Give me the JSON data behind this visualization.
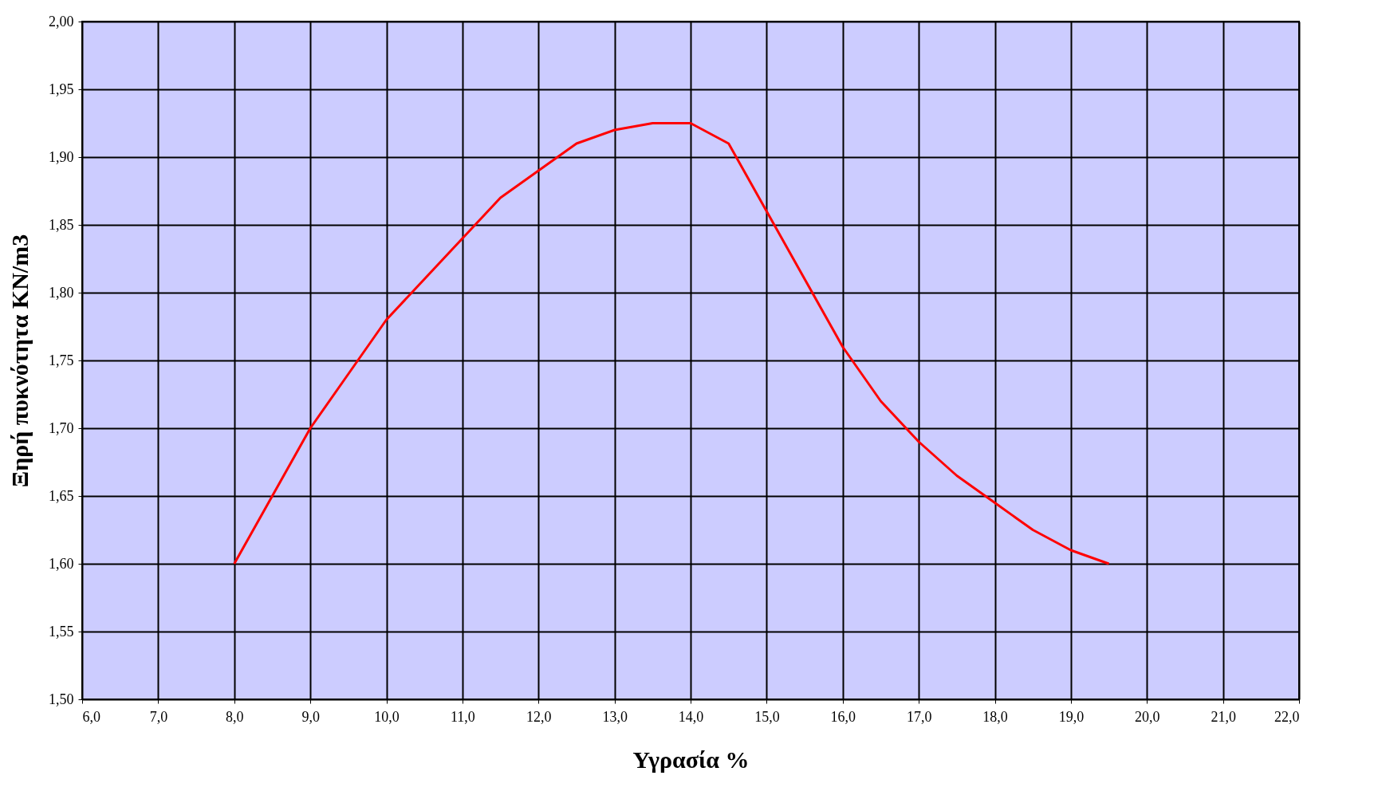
{
  "chart_data": {
    "type": "line",
    "xlabel": "Υγρασία %",
    "ylabel": "Ξηρή πυκνότητα KN/m3",
    "x": [
      8.0,
      8.5,
      9.0,
      9.5,
      10.0,
      10.5,
      11.0,
      11.5,
      12.0,
      12.5,
      13.0,
      13.5,
      14.0,
      14.5,
      15.0,
      15.5,
      16.0,
      16.5,
      17.0,
      17.5,
      18.0,
      18.5,
      19.0,
      19.5
    ],
    "series": [
      {
        "color": "#ff0000",
        "values": [
          1.6,
          1.65,
          1.7,
          1.74,
          1.78,
          1.81,
          1.84,
          1.87,
          1.89,
          1.91,
          1.92,
          1.925,
          1.925,
          1.91,
          1.86,
          1.81,
          1.76,
          1.72,
          1.69,
          1.665,
          1.645,
          1.625,
          1.61,
          1.6
        ]
      }
    ],
    "xlim": [
      6.0,
      22.0
    ],
    "xticks": [
      {
        "value": 6,
        "label": "6,0"
      },
      {
        "value": 7,
        "label": "7,0"
      },
      {
        "value": 8,
        "label": "8,0"
      },
      {
        "value": 9,
        "label": "9,0"
      },
      {
        "value": 10,
        "label": "10,0"
      },
      {
        "value": 11,
        "label": "11,0"
      },
      {
        "value": 12,
        "label": "12,0"
      },
      {
        "value": 13,
        "label": "13,0"
      },
      {
        "value": 14,
        "label": "14,0"
      },
      {
        "value": 15,
        "label": "15,0"
      },
      {
        "value": 16,
        "label": "16,0"
      },
      {
        "value": 17,
        "label": "17,0"
      },
      {
        "value": 18,
        "label": "18,0"
      },
      {
        "value": 19,
        "label": "19,0"
      },
      {
        "value": 20,
        "label": "20,0"
      },
      {
        "value": 21,
        "label": "21,0"
      },
      {
        "value": 22,
        "label": "22,0"
      }
    ],
    "ylim": [
      1.5,
      2.0
    ],
    "yticks": [
      {
        "value": 1.5,
        "label": "1,50"
      },
      {
        "value": 1.55,
        "label": "1,55"
      },
      {
        "value": 1.6,
        "label": "1,60"
      },
      {
        "value": 1.65,
        "label": "1,65"
      },
      {
        "value": 1.7,
        "label": "1,70"
      },
      {
        "value": 1.75,
        "label": "1,75"
      },
      {
        "value": 1.8,
        "label": "1,80"
      },
      {
        "value": 1.85,
        "label": "1,85"
      },
      {
        "value": 1.9,
        "label": "1,90"
      },
      {
        "value": 1.95,
        "label": "1,95"
      },
      {
        "value": 2.0,
        "label": "2,00"
      }
    ],
    "grid": true,
    "marker": "none",
    "line_style": "solid"
  }
}
